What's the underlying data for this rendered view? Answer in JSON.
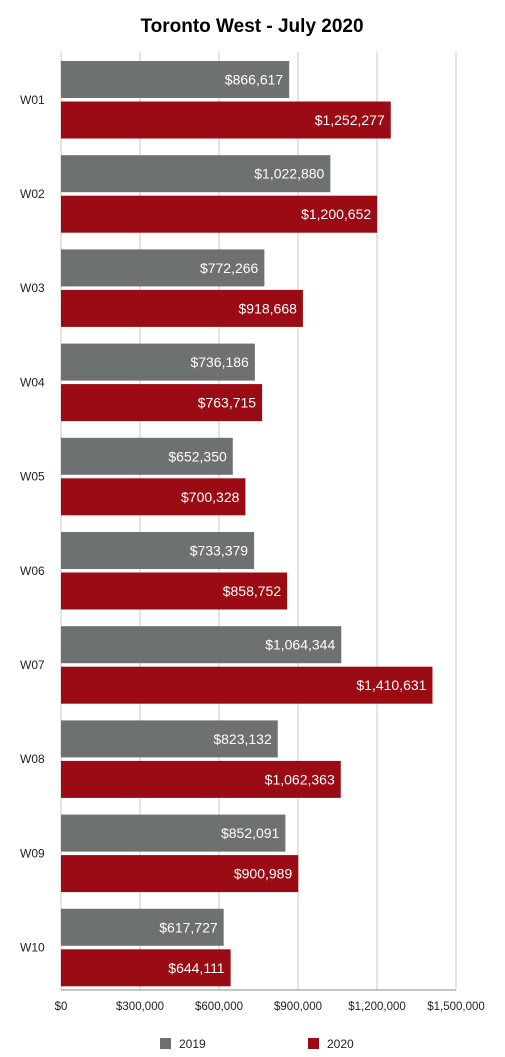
{
  "chart_data": {
    "type": "bar",
    "orientation": "horizontal",
    "title": "Toronto West - July 2020",
    "categories": [
      "W01",
      "W02",
      "W03",
      "W04",
      "W05",
      "W06",
      "W07",
      "W08",
      "W09",
      "W10"
    ],
    "series": [
      {
        "name": "2019",
        "color": "#6d716f",
        "values": [
          866617,
          1022880,
          772266,
          736186,
          652350,
          733379,
          1064344,
          823132,
          852091,
          617727
        ],
        "labels": [
          "$866,617",
          "$1,022,880",
          "$772,266",
          "$736,186",
          "$652,350",
          "$733,379",
          "$1,064,344",
          "$823,132",
          "$852,091",
          "$617,727"
        ]
      },
      {
        "name": "2020",
        "color": "#9a0b13",
        "values": [
          1252277,
          1200652,
          918668,
          763715,
          700328,
          858752,
          1410631,
          1062363,
          900989,
          644111
        ],
        "labels": [
          "$1,252,277",
          "$1,200,652",
          "$918,668",
          "$763,715",
          "$700,328",
          "$858,752",
          "$1,410,631",
          "$1,062,363",
          "$900,989",
          "$644,111"
        ]
      }
    ],
    "xlim": [
      0,
      1500000
    ],
    "xticks": [
      0,
      300000,
      600000,
      900000,
      1200000,
      1500000
    ],
    "xtick_labels": [
      "$0",
      "$300,000",
      "$600,000",
      "$900,000",
      "$1,200,000",
      "$1,500,000"
    ],
    "grid": true,
    "legend_position": "bottom"
  }
}
